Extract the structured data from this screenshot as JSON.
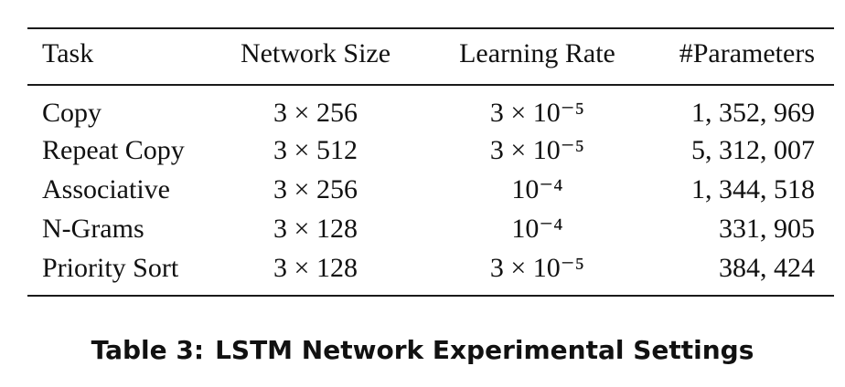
{
  "table": {
    "headers": {
      "task": "Task",
      "network_size": "Network Size",
      "learning_rate": "Learning Rate",
      "parameters": "#Parameters"
    },
    "rows": [
      {
        "task": "Copy",
        "network_size": "3 × 256",
        "learning_rate": "3 × 10⁻⁵",
        "parameters": "1, 352, 969"
      },
      {
        "task": "Repeat Copy",
        "network_size": "3 × 512",
        "learning_rate": "3 × 10⁻⁵",
        "parameters": "5, 312, 007"
      },
      {
        "task": "Associative",
        "network_size": "3 × 256",
        "learning_rate": "10⁻⁴",
        "parameters": "1, 344, 518"
      },
      {
        "task": "N-Grams",
        "network_size": "3 × 128",
        "learning_rate": "10⁻⁴",
        "parameters": "331, 905"
      },
      {
        "task": "Priority Sort",
        "network_size": "3 × 128",
        "learning_rate": "3 × 10⁻⁵",
        "parameters": "384, 424"
      }
    ]
  },
  "caption": {
    "label": "Table 3:",
    "text": "LSTM Network Experimental Settings"
  }
}
